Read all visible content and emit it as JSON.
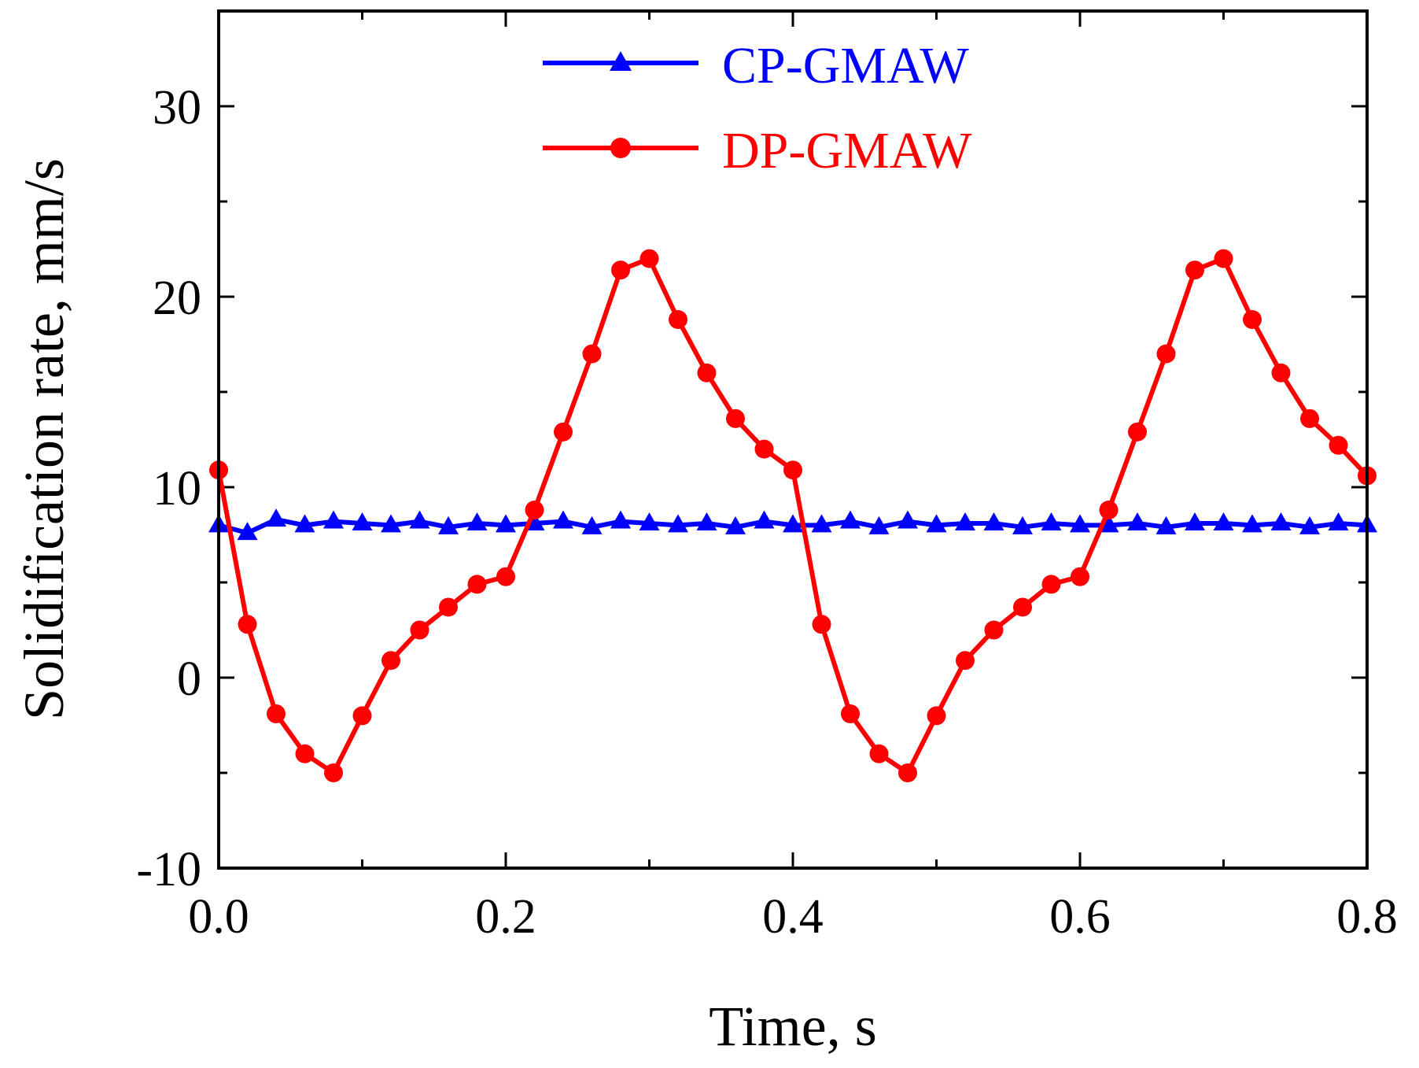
{
  "chart_data": {
    "type": "line",
    "title": "",
    "xlabel": "Time, s",
    "ylabel": "Solidification rate, mm/s",
    "xlim": [
      0,
      0.8
    ],
    "ylim": [
      -10,
      35
    ],
    "x_ticks": [
      0.0,
      0.2,
      0.4,
      0.6,
      0.8
    ],
    "x_tick_labels": [
      "0.0",
      "0.2",
      "0.4",
      "0.6",
      "0.8"
    ],
    "x_minor_ticks": [
      0.1,
      0.3,
      0.5,
      0.7
    ],
    "y_ticks": [
      -10,
      0,
      10,
      20,
      30
    ],
    "y_tick_labels": [
      "-10",
      "0",
      "10",
      "20",
      "30"
    ],
    "y_minor_ticks": [
      -5,
      5,
      15,
      25
    ],
    "grid": false,
    "legend_position": "top-center",
    "series": [
      {
        "name": "CP-GMAW",
        "color": "#0000ff",
        "marker": "triangle",
        "x": [
          0,
          0.02,
          0.04,
          0.06,
          0.08,
          0.1,
          0.12,
          0.14,
          0.16,
          0.18,
          0.2,
          0.22,
          0.24,
          0.26,
          0.28,
          0.3,
          0.32,
          0.34,
          0.36,
          0.38,
          0.4,
          0.42,
          0.44,
          0.46,
          0.48,
          0.5,
          0.52,
          0.54,
          0.56,
          0.58,
          0.6,
          0.62,
          0.64,
          0.66,
          0.68,
          0.7,
          0.72,
          0.74,
          0.76,
          0.78,
          0.8
        ],
        "y": [
          8.0,
          7.6,
          8.3,
          8.0,
          8.2,
          8.1,
          8.0,
          8.2,
          7.9,
          8.1,
          8.0,
          8.1,
          8.2,
          7.9,
          8.2,
          8.1,
          8.0,
          8.1,
          7.9,
          8.2,
          8.0,
          8.0,
          8.2,
          7.9,
          8.2,
          8.0,
          8.1,
          8.1,
          7.9,
          8.1,
          8.0,
          8.0,
          8.1,
          7.9,
          8.1,
          8.1,
          8.0,
          8.1,
          7.9,
          8.1,
          8.0
        ]
      },
      {
        "name": "DP-GMAW",
        "color": "#ff0000",
        "marker": "circle",
        "x": [
          0,
          0.02,
          0.04,
          0.06,
          0.08,
          0.1,
          0.12,
          0.14,
          0.16,
          0.18,
          0.2,
          0.22,
          0.24,
          0.26,
          0.28,
          0.3,
          0.32,
          0.34,
          0.36,
          0.38,
          0.4,
          0.42,
          0.44,
          0.46,
          0.48,
          0.5,
          0.52,
          0.54,
          0.56,
          0.58,
          0.6,
          0.62,
          0.64,
          0.66,
          0.68,
          0.7,
          0.72,
          0.74,
          0.76,
          0.78,
          0.8
        ],
        "y": [
          10.9,
          2.8,
          -1.9,
          -4.0,
          -5.0,
          -2.0,
          0.9,
          2.5,
          3.7,
          4.9,
          5.3,
          8.8,
          12.9,
          17.0,
          21.4,
          22.0,
          18.8,
          16.0,
          13.6,
          12.0,
          10.9,
          2.8,
          -1.9,
          -4.0,
          -5.0,
          -2.0,
          0.9,
          2.5,
          3.7,
          4.9,
          5.3,
          8.8,
          12.9,
          17.0,
          21.4,
          22.0,
          18.8,
          16.0,
          13.6,
          12.2,
          10.6
        ]
      }
    ]
  }
}
